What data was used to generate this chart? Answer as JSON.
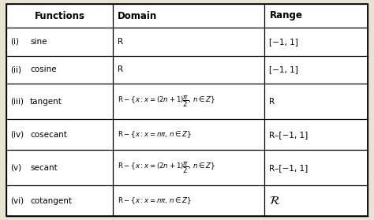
{
  "bg_color": "#e8e4d0",
  "table_bg": "#ffffff",
  "border_color": "#000000",
  "header": [
    "Functions",
    "Domain",
    "Range"
  ],
  "nums": [
    "(i)",
    "(ii)",
    "(iii)",
    "(iv)",
    "(v)",
    "(vi)"
  ],
  "names": [
    "sine",
    "cosine",
    "tangent",
    "cosecant",
    "secant",
    "cotangent"
  ],
  "domains_text": [
    "R",
    "R",
    null,
    null,
    null,
    null
  ],
  "domains_latex": [
    null,
    null,
    "$\\mathrm{R}-\\{x:x=(2n+1)\\dfrac{\\pi}{2},\\,n\\in Z\\}$",
    "$\\mathrm{R}-\\{x:x=n\\pi,\\,n\\in Z\\}$",
    "$\\mathrm{R}-\\{x:x=(2n+1)\\dfrac{\\pi}{2},\\,n\\in Z\\}$",
    "$\\mathrm{R}-\\{x:x=n\\pi,\\,n\\in Z\\}$"
  ],
  "ranges": [
    "[−1, 1]",
    "[−1, 1]",
    "R",
    "R–[−1, 1]",
    "R–[−1, 1]",
    null
  ],
  "range_last_latex": "$\\mathcal{R}$",
  "col_splits": [
    0.295,
    0.715
  ],
  "font_size": 7.5,
  "header_font_size": 8.5,
  "domain_latex_size": 6.2,
  "range_font_size": 7.5,
  "special_range_size": 11
}
